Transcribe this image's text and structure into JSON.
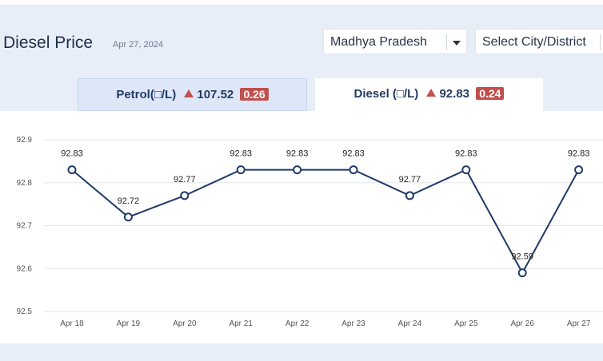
{
  "header": {
    "title": "Diesel Price",
    "date": "Apr 27, 2024",
    "state_select": "Madhya Pradesh",
    "city_select": "Select City/District"
  },
  "tabs": [
    {
      "label": "Petrol(□/L)",
      "price": "107.52",
      "change": "0.26",
      "trend": "up",
      "active": false
    },
    {
      "label": "Diesel (□/L)",
      "price": "92.83",
      "change": "0.24",
      "trend": "up",
      "active": true
    }
  ],
  "colors": {
    "line": "#1f3a66",
    "up_indicator": "#c0504d",
    "active_tab_bg": "#ffffff",
    "inactive_tab_bg": "#dde7f7"
  },
  "chart_data": {
    "type": "line",
    "categories": [
      "Apr 18",
      "Apr 19",
      "Apr 20",
      "Apr 21",
      "Apr 22",
      "Apr 23",
      "Apr 24",
      "Apr 25",
      "Apr 26",
      "Apr 27"
    ],
    "values": [
      92.83,
      92.72,
      92.77,
      92.83,
      92.83,
      92.83,
      92.77,
      92.83,
      92.59,
      92.83
    ],
    "data_labels": [
      "92.83",
      "92.72",
      "92.77",
      "92.83",
      "92.83",
      "92.83",
      "92.77",
      "92.83",
      "92.59",
      "92.83"
    ],
    "ylim": [
      92.5,
      92.9
    ],
    "yticks": [
      "92.9",
      "92.8",
      "92.7",
      "92.6",
      "92.5"
    ],
    "grid": true,
    "legend": "none"
  }
}
